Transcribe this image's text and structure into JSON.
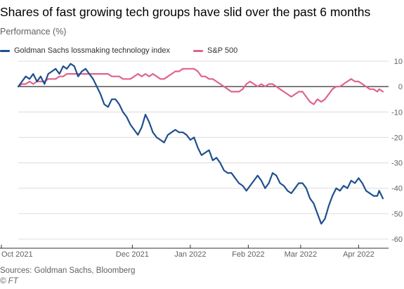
{
  "title": "Shares of fast growing tech groups have slid over the past 6 months",
  "subtitle": "Performance (%)",
  "source": "Sources: Goldman Sachs, Bloomberg",
  "credit": "© FT",
  "chart_data": {
    "type": "line",
    "title": "Shares of fast growing tech groups have slid over the past 6 months",
    "ylabel": "Performance (%)",
    "xlabel": "",
    "ylim": [
      -60,
      10
    ],
    "yticks": [
      10,
      0,
      -10,
      -20,
      -30,
      -40,
      -50,
      -60
    ],
    "xlim": [
      "2021-10-01",
      "2022-04-14"
    ],
    "xticks": [
      {
        "date": "2021-10-01",
        "label": "Oct 2021"
      },
      {
        "date": "2021-12-01",
        "label": "Dec 2021"
      },
      {
        "date": "2022-01-01",
        "label": "Jan 2022"
      },
      {
        "date": "2022-02-01",
        "label": "Feb 2022"
      },
      {
        "date": "2022-03-01",
        "label": "Mar 2022"
      },
      {
        "date": "2022-04-01",
        "label": "Apr 2022"
      }
    ],
    "grid": "horizontal",
    "legend": "top-left",
    "series": [
      {
        "name": "Goldman Sachs lossmaking technology index",
        "color": "#1e4f8f",
        "points": [
          [
            "2021-10-01",
            0
          ],
          [
            "2021-10-03",
            2
          ],
          [
            "2021-10-05",
            4
          ],
          [
            "2021-10-07",
            3
          ],
          [
            "2021-10-09",
            5
          ],
          [
            "2021-10-11",
            2
          ],
          [
            "2021-10-13",
            4
          ],
          [
            "2021-10-15",
            1
          ],
          [
            "2021-10-17",
            5
          ],
          [
            "2021-10-19",
            6
          ],
          [
            "2021-10-21",
            7
          ],
          [
            "2021-10-23",
            5
          ],
          [
            "2021-10-25",
            8
          ],
          [
            "2021-10-27",
            7
          ],
          [
            "2021-10-29",
            9
          ],
          [
            "2021-10-31",
            8
          ],
          [
            "2021-11-02",
            4
          ],
          [
            "2021-11-04",
            6
          ],
          [
            "2021-11-06",
            7
          ],
          [
            "2021-11-08",
            5
          ],
          [
            "2021-11-10",
            3
          ],
          [
            "2021-11-12",
            0
          ],
          [
            "2021-11-14",
            -3
          ],
          [
            "2021-11-16",
            -7
          ],
          [
            "2021-11-18",
            -8
          ],
          [
            "2021-11-20",
            -5
          ],
          [
            "2021-11-22",
            -5
          ],
          [
            "2021-11-24",
            -7
          ],
          [
            "2021-11-26",
            -10
          ],
          [
            "2021-11-28",
            -12
          ],
          [
            "2021-11-30",
            -15
          ],
          [
            "2021-12-02",
            -17
          ],
          [
            "2021-12-04",
            -19
          ],
          [
            "2021-12-06",
            -16
          ],
          [
            "2021-12-08",
            -11
          ],
          [
            "2021-12-10",
            -14
          ],
          [
            "2021-12-12",
            -18
          ],
          [
            "2021-12-14",
            -20
          ],
          [
            "2021-12-16",
            -21
          ],
          [
            "2021-12-18",
            -22
          ],
          [
            "2021-12-20",
            -19
          ],
          [
            "2021-12-22",
            -18
          ],
          [
            "2021-12-24",
            -17
          ],
          [
            "2021-12-26",
            -18
          ],
          [
            "2021-12-28",
            -18
          ],
          [
            "2021-12-30",
            -19
          ],
          [
            "2022-01-01",
            -21
          ],
          [
            "2022-01-03",
            -20
          ],
          [
            "2022-01-05",
            -24
          ],
          [
            "2022-01-07",
            -27
          ],
          [
            "2022-01-09",
            -26
          ],
          [
            "2022-01-11",
            -25
          ],
          [
            "2022-01-13",
            -29
          ],
          [
            "2022-01-15",
            -28
          ],
          [
            "2022-01-17",
            -30
          ],
          [
            "2022-01-19",
            -33
          ],
          [
            "2022-01-21",
            -34
          ],
          [
            "2022-01-23",
            -34
          ],
          [
            "2022-01-25",
            -36
          ],
          [
            "2022-01-27",
            -38
          ],
          [
            "2022-01-29",
            -39
          ],
          [
            "2022-01-31",
            -41
          ],
          [
            "2022-02-02",
            -39
          ],
          [
            "2022-02-04",
            -37
          ],
          [
            "2022-02-06",
            -35
          ],
          [
            "2022-02-08",
            -37
          ],
          [
            "2022-02-10",
            -40
          ],
          [
            "2022-02-12",
            -38
          ],
          [
            "2022-02-14",
            -34
          ],
          [
            "2022-02-16",
            -35
          ],
          [
            "2022-02-18",
            -38
          ],
          [
            "2022-02-20",
            -39
          ],
          [
            "2022-02-22",
            -41
          ],
          [
            "2022-02-24",
            -42
          ],
          [
            "2022-02-26",
            -40
          ],
          [
            "2022-02-28",
            -38
          ],
          [
            "2022-03-02",
            -38
          ],
          [
            "2022-03-04",
            -40
          ],
          [
            "2022-03-06",
            -44
          ],
          [
            "2022-03-08",
            -46
          ],
          [
            "2022-03-10",
            -50
          ],
          [
            "2022-03-12",
            -54
          ],
          [
            "2022-03-14",
            -52
          ],
          [
            "2022-03-16",
            -47
          ],
          [
            "2022-03-18",
            -43
          ],
          [
            "2022-03-20",
            -40
          ],
          [
            "2022-03-22",
            -41
          ],
          [
            "2022-03-24",
            -39
          ],
          [
            "2022-03-26",
            -40
          ],
          [
            "2022-03-28",
            -37
          ],
          [
            "2022-03-30",
            -38
          ],
          [
            "2022-04-01",
            -36
          ],
          [
            "2022-04-03",
            -38
          ],
          [
            "2022-04-05",
            -41
          ],
          [
            "2022-04-07",
            -42
          ],
          [
            "2022-04-09",
            -43
          ],
          [
            "2022-04-11",
            -43
          ],
          [
            "2022-04-12",
            -41
          ],
          [
            "2022-04-14",
            -44
          ]
        ]
      },
      {
        "name": "S&P 500",
        "color": "#e0628f",
        "points": [
          [
            "2021-10-01",
            0
          ],
          [
            "2021-10-03",
            1
          ],
          [
            "2021-10-05",
            1
          ],
          [
            "2021-10-07",
            2
          ],
          [
            "2021-10-09",
            1
          ],
          [
            "2021-10-11",
            2
          ],
          [
            "2021-10-13",
            2
          ],
          [
            "2021-10-15",
            2
          ],
          [
            "2021-10-17",
            3
          ],
          [
            "2021-10-19",
            3
          ],
          [
            "2021-10-21",
            3
          ],
          [
            "2021-10-23",
            4
          ],
          [
            "2021-10-25",
            4
          ],
          [
            "2021-10-27",
            5
          ],
          [
            "2021-10-29",
            5
          ],
          [
            "2021-10-31",
            5
          ],
          [
            "2021-11-02",
            5
          ],
          [
            "2021-11-04",
            5
          ],
          [
            "2021-11-06",
            5
          ],
          [
            "2021-11-08",
            5
          ],
          [
            "2021-11-10",
            5
          ],
          [
            "2021-11-12",
            5
          ],
          [
            "2021-11-14",
            5
          ],
          [
            "2021-11-16",
            5
          ],
          [
            "2021-11-18",
            5
          ],
          [
            "2021-11-20",
            4
          ],
          [
            "2021-11-22",
            4
          ],
          [
            "2021-11-24",
            4
          ],
          [
            "2021-11-26",
            3
          ],
          [
            "2021-11-28",
            3
          ],
          [
            "2021-11-30",
            3
          ],
          [
            "2021-12-02",
            4
          ],
          [
            "2021-12-04",
            5
          ],
          [
            "2021-12-06",
            4
          ],
          [
            "2021-12-08",
            5
          ],
          [
            "2021-12-10",
            4
          ],
          [
            "2021-12-12",
            5
          ],
          [
            "2021-12-14",
            4
          ],
          [
            "2021-12-16",
            3
          ],
          [
            "2021-12-18",
            3
          ],
          [
            "2021-12-20",
            4
          ],
          [
            "2021-12-22",
            5
          ],
          [
            "2021-12-24",
            6
          ],
          [
            "2021-12-26",
            6
          ],
          [
            "2021-12-28",
            7
          ],
          [
            "2021-12-30",
            7
          ],
          [
            "2022-01-01",
            7
          ],
          [
            "2022-01-03",
            7
          ],
          [
            "2022-01-05",
            6
          ],
          [
            "2022-01-07",
            4
          ],
          [
            "2022-01-09",
            4
          ],
          [
            "2022-01-11",
            3
          ],
          [
            "2022-01-13",
            3
          ],
          [
            "2022-01-15",
            2
          ],
          [
            "2022-01-17",
            1
          ],
          [
            "2022-01-19",
            0
          ],
          [
            "2022-01-21",
            -1
          ],
          [
            "2022-01-23",
            -2
          ],
          [
            "2022-01-25",
            -2
          ],
          [
            "2022-01-27",
            -2
          ],
          [
            "2022-01-29",
            -1
          ],
          [
            "2022-01-31",
            1
          ],
          [
            "2022-02-02",
            2
          ],
          [
            "2022-02-04",
            1
          ],
          [
            "2022-02-06",
            0
          ],
          [
            "2022-02-08",
            1
          ],
          [
            "2022-02-10",
            0
          ],
          [
            "2022-02-12",
            1
          ],
          [
            "2022-02-14",
            1
          ],
          [
            "2022-02-16",
            0
          ],
          [
            "2022-02-18",
            -1
          ],
          [
            "2022-02-20",
            -2
          ],
          [
            "2022-02-22",
            -3
          ],
          [
            "2022-02-24",
            -4
          ],
          [
            "2022-02-26",
            -3
          ],
          [
            "2022-02-28",
            -2
          ],
          [
            "2022-03-02",
            -2
          ],
          [
            "2022-03-04",
            -4
          ],
          [
            "2022-03-06",
            -6
          ],
          [
            "2022-03-08",
            -7
          ],
          [
            "2022-03-10",
            -5
          ],
          [
            "2022-03-12",
            -6
          ],
          [
            "2022-03-14",
            -5
          ],
          [
            "2022-03-16",
            -3
          ],
          [
            "2022-03-18",
            -1
          ],
          [
            "2022-03-20",
            0
          ],
          [
            "2022-03-22",
            0
          ],
          [
            "2022-03-24",
            1
          ],
          [
            "2022-03-26",
            2
          ],
          [
            "2022-03-28",
            3
          ],
          [
            "2022-03-30",
            2
          ],
          [
            "2022-04-01",
            2
          ],
          [
            "2022-04-03",
            1
          ],
          [
            "2022-04-05",
            0
          ],
          [
            "2022-04-07",
            -1
          ],
          [
            "2022-04-09",
            -1
          ],
          [
            "2022-04-11",
            -2
          ],
          [
            "2022-04-12",
            -1
          ],
          [
            "2022-04-14",
            -2
          ]
        ]
      }
    ]
  }
}
